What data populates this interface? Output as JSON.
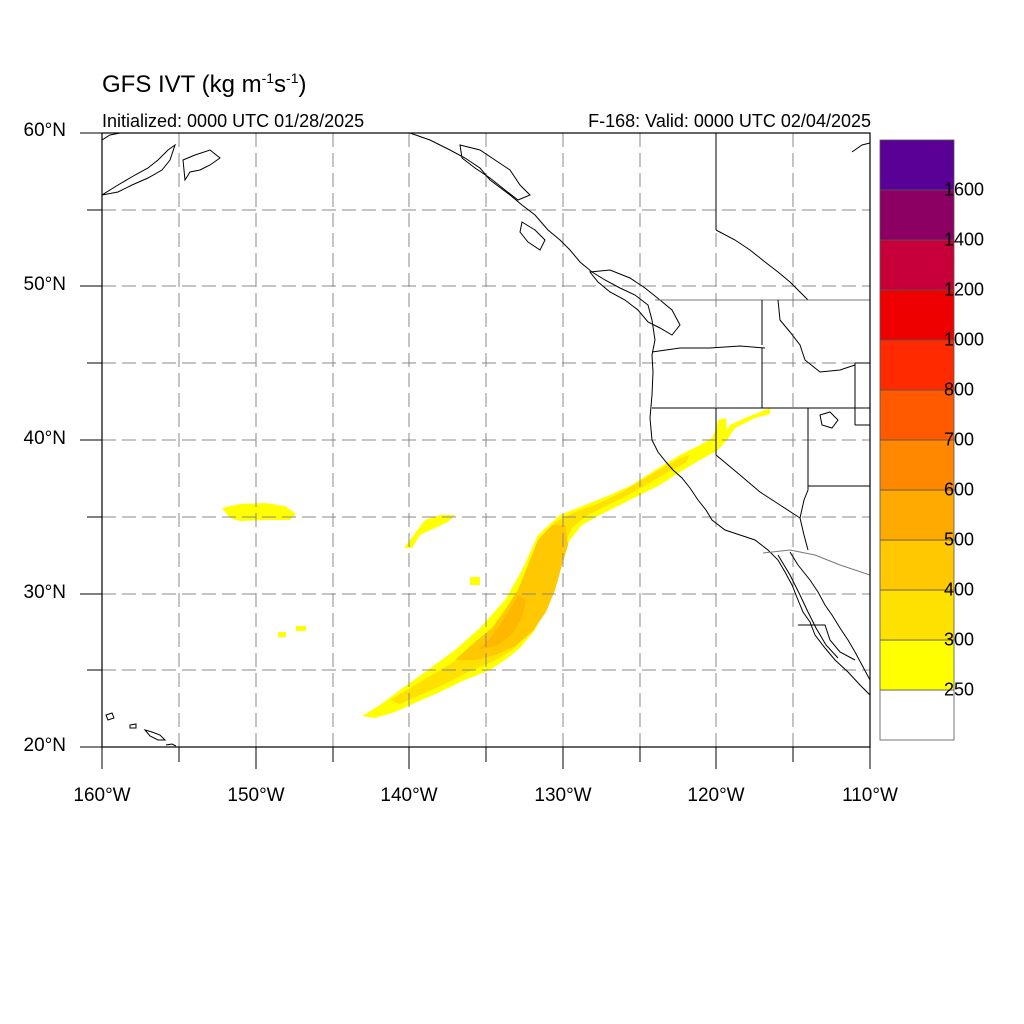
{
  "header": {
    "title_main": "GFS IVT (kg m",
    "title_exp1": "-1",
    "title_mid": "s",
    "title_exp2": "-1",
    "title_end": ")",
    "initialized": "Initialized: 0000 UTC 01/28/2025",
    "valid": "F-168: Valid: 0000 UTC 02/04/2025"
  },
  "axes": {
    "lat_labels": [
      "20°N",
      "30°N",
      "40°N",
      "50°N",
      "60°N"
    ],
    "lon_labels": [
      "160°W",
      "150°W",
      "140°W",
      "130°W",
      "120°W",
      "110°W"
    ],
    "lat_range": [
      20,
      60
    ],
    "lon_range": [
      -160,
      -110
    ],
    "grid": "dashed every 5 degrees"
  },
  "colorbar": {
    "labels": [
      "250",
      "300",
      "400",
      "500",
      "600",
      "700",
      "800",
      "1000",
      "1200",
      "1400",
      "1600"
    ],
    "colors": [
      "#ffffff",
      "#ffff00",
      "#ffe100",
      "#ffc800",
      "#ffaa00",
      "#ff8800",
      "#ff5a00",
      "#ff2a00",
      "#ee0000",
      "#c8003a",
      "#8c0064",
      "#5a0096"
    ]
  },
  "chart_data": {
    "type": "heatmap",
    "title": "GFS IVT (kg m-1s-1)",
    "subtitle_left": "Initialized: 0000 UTC 01/28/2025",
    "subtitle_right": "F-168: Valid: 0000 UTC 02/04/2025",
    "xlim": [
      -160,
      -110
    ],
    "ylim": [
      20,
      60
    ],
    "levels": [
      250,
      300,
      400,
      500,
      600,
      700,
      800,
      1000,
      1200,
      1400,
      1600
    ],
    "features": [
      {
        "region": "atmospheric river core",
        "lon_lat": [
          [
            -143,
            22
          ],
          [
            -136,
            26
          ],
          [
            -131,
            33
          ],
          [
            -125,
            37
          ],
          [
            -120,
            40.5
          ]
        ],
        "ivt_range": [
          250,
          500
        ]
      },
      {
        "region": "isolated patch",
        "lon_lat": [
          [
            -150,
            35
          ]
        ],
        "ivt_range": [
          250,
          300
        ]
      },
      {
        "region": "isolated patch",
        "lon_lat": [
          [
            -138,
            34.5
          ]
        ],
        "ivt_range": [
          250,
          300
        ]
      }
    ]
  }
}
